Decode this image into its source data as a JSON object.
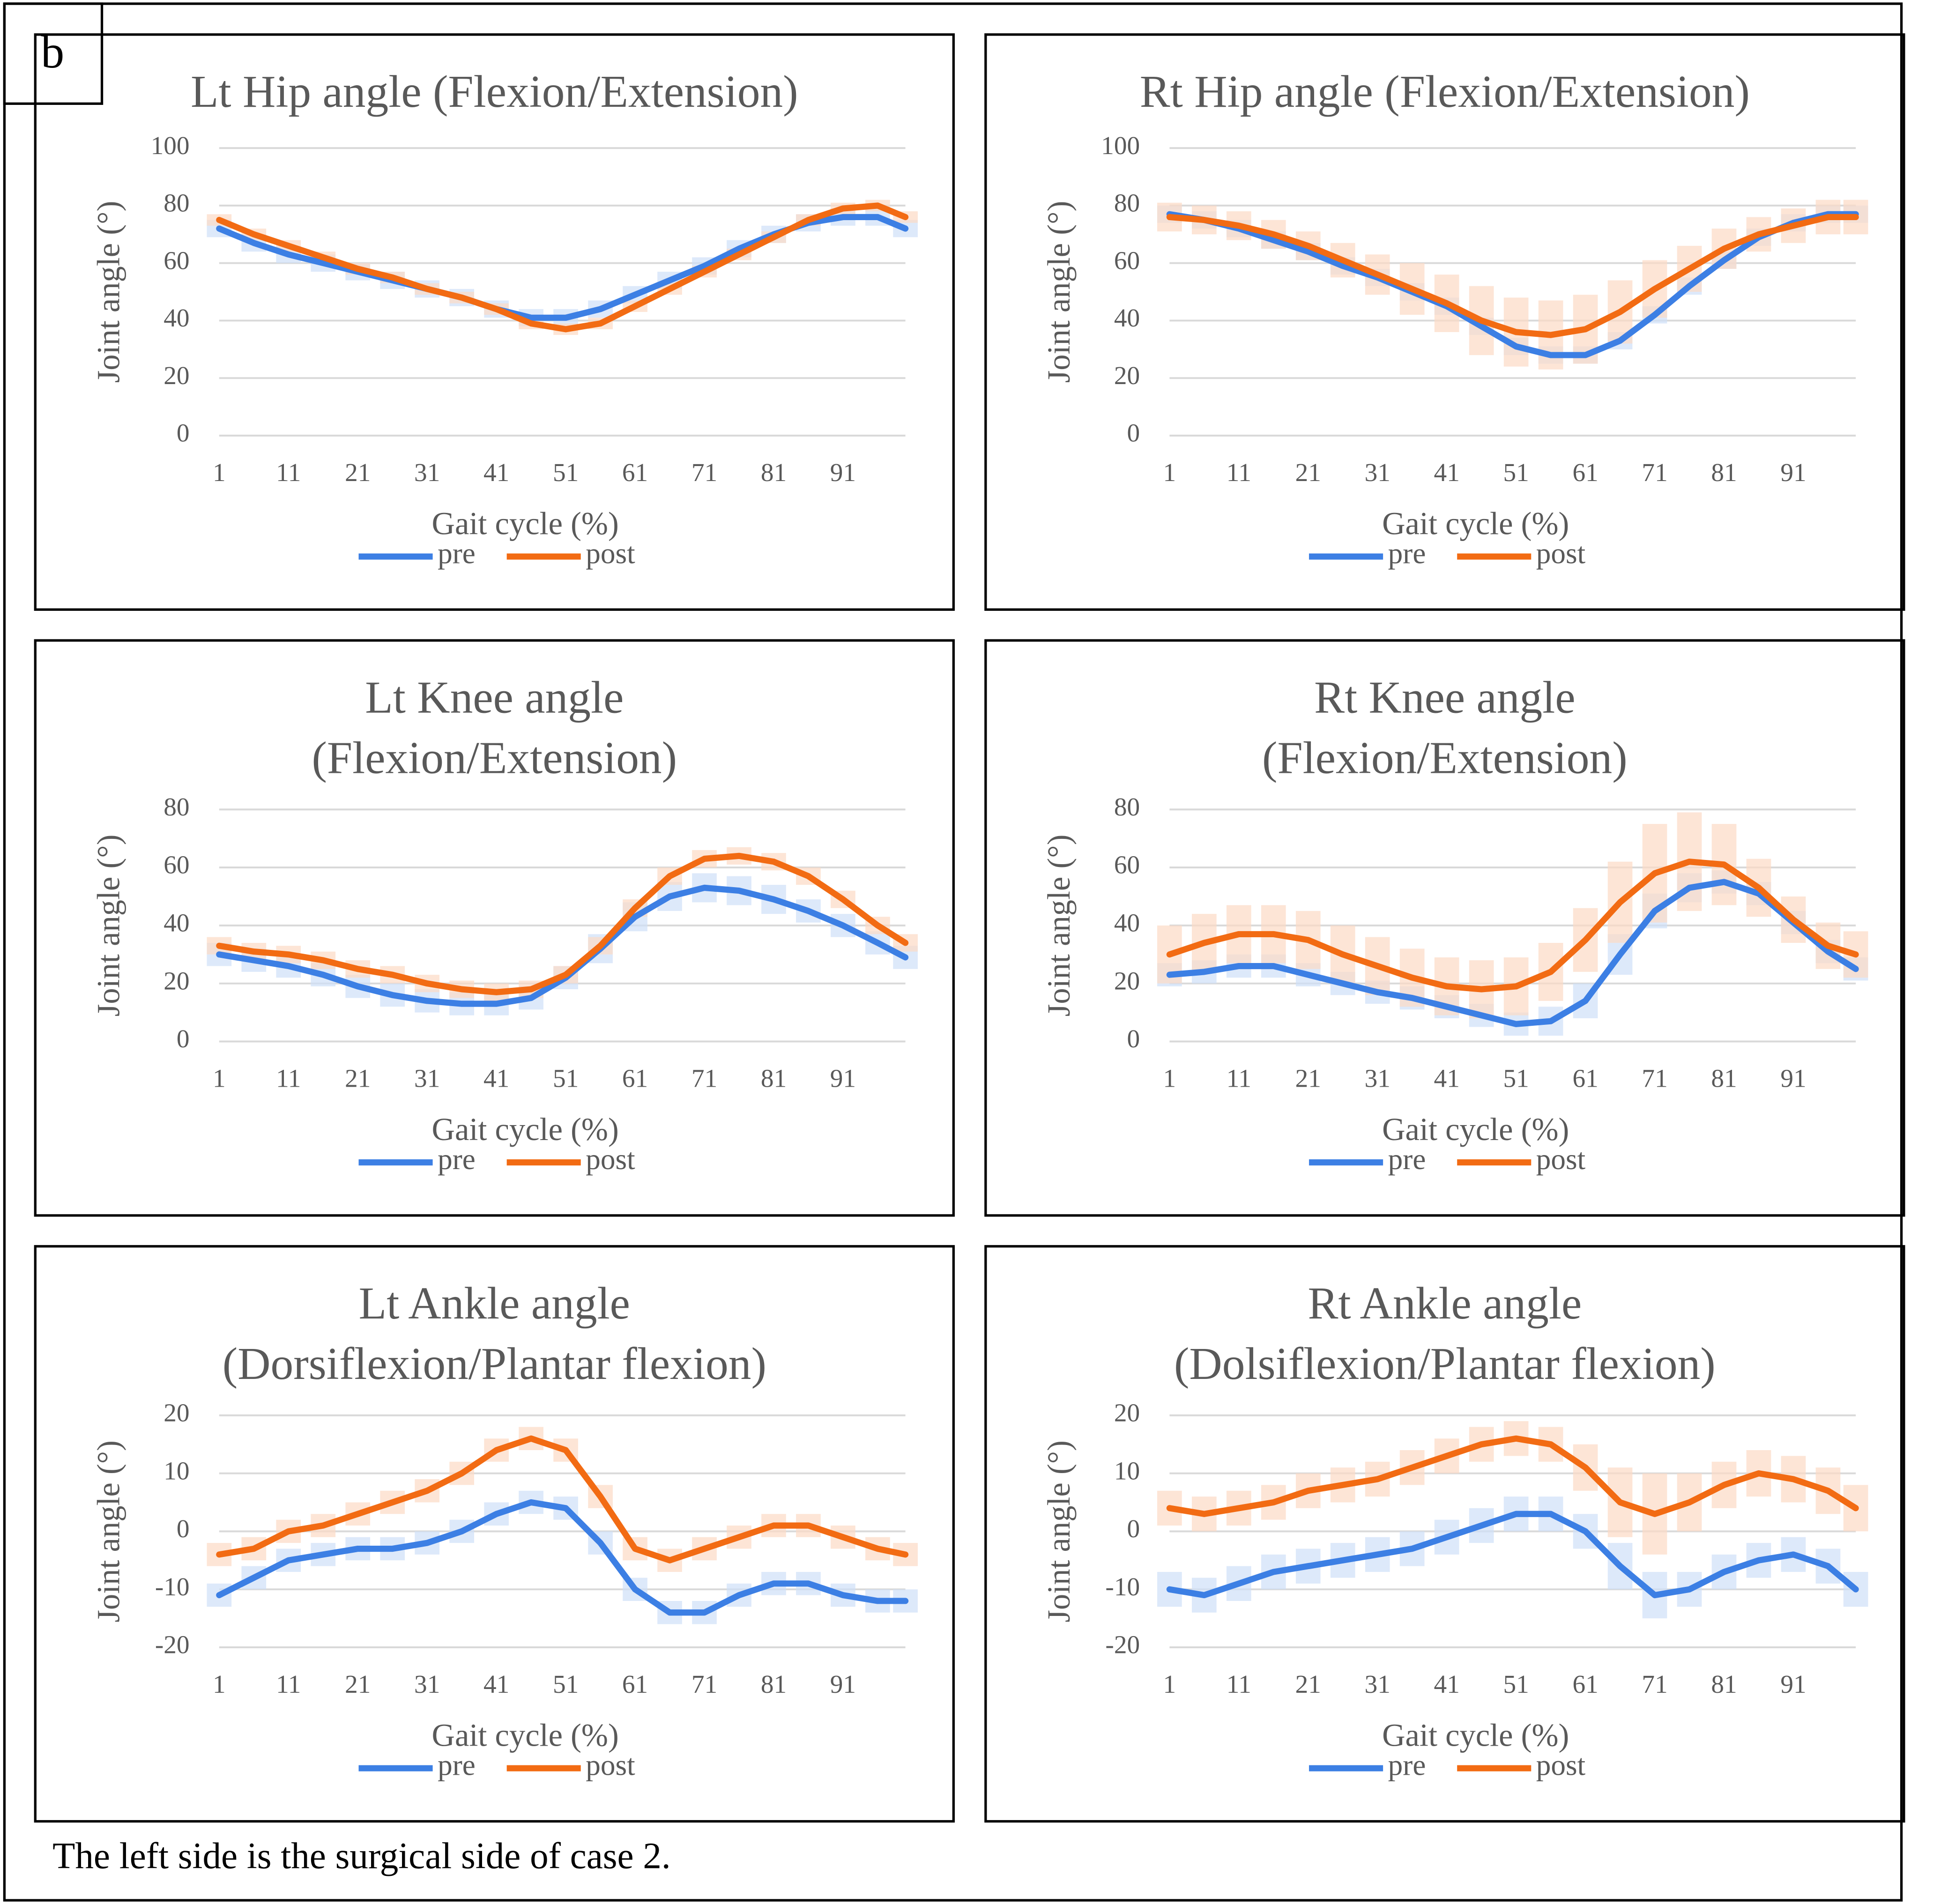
{
  "panel_label": "b",
  "caption": "The left side is the surgical side of case 2.",
  "chart_data": [
    {
      "type": "line",
      "title": [
        "Lt Hip angle (Flexion/Extension)"
      ],
      "x_label": "Gait cycle (%)",
      "y_label": "Joint angle (°)",
      "x": [
        1,
        6,
        11,
        16,
        21,
        26,
        31,
        36,
        41,
        46,
        51,
        56,
        61,
        66,
        71,
        76,
        81,
        86,
        91,
        96,
        100
      ],
      "xlim": [
        1,
        100
      ],
      "xticks": [
        1,
        11,
        21,
        31,
        41,
        51,
        61,
        71,
        81,
        91
      ],
      "ylim": [
        0,
        100
      ],
      "yticks": [
        0,
        20,
        40,
        60,
        80,
        100
      ],
      "grid": true,
      "series": [
        {
          "name": "pre",
          "color": "#3c7fe4",
          "values": [
            72,
            67,
            63,
            60,
            57,
            54,
            51,
            48,
            44,
            41,
            41,
            44,
            49,
            54,
            59,
            65,
            70,
            74,
            76,
            76,
            72
          ],
          "errors": [
            3,
            3,
            3,
            3,
            3,
            3,
            3,
            3,
            3,
            3,
            3,
            3,
            3,
            3,
            3,
            3,
            3,
            3,
            3,
            3,
            3
          ]
        },
        {
          "name": "post",
          "color": "#f26b13",
          "values": [
            75,
            70,
            66,
            62,
            58,
            55,
            51,
            48,
            44,
            39,
            37,
            39,
            45,
            51,
            57,
            63,
            69,
            75,
            79,
            80,
            76
          ],
          "errors": [
            2,
            2,
            2,
            2,
            2,
            2,
            2,
            2,
            2,
            2,
            2,
            2,
            2,
            2,
            2,
            2,
            2,
            2,
            2,
            2,
            2
          ]
        }
      ]
    },
    {
      "type": "line",
      "title": [
        "Rt Hip angle (Flexion/Extension)"
      ],
      "x_label": "Gait cycle (%)",
      "y_label": "Joint angle (°)",
      "x": [
        1,
        6,
        11,
        16,
        21,
        26,
        31,
        36,
        41,
        46,
        51,
        56,
        61,
        66,
        71,
        76,
        81,
        86,
        91,
        96,
        100
      ],
      "xlim": [
        1,
        100
      ],
      "xticks": [
        1,
        11,
        21,
        31,
        41,
        51,
        61,
        71,
        81,
        91
      ],
      "ylim": [
        0,
        100
      ],
      "yticks": [
        0,
        20,
        40,
        60,
        80,
        100
      ],
      "grid": true,
      "series": [
        {
          "name": "pre",
          "color": "#3c7fe4",
          "values": [
            77,
            75,
            72,
            68,
            64,
            59,
            55,
            50,
            45,
            38,
            31,
            28,
            28,
            33,
            42,
            52,
            61,
            69,
            74,
            77,
            77
          ],
          "errors": [
            3,
            3,
            3,
            3,
            3,
            3,
            3,
            3,
            3,
            3,
            3,
            3,
            3,
            3,
            3,
            3,
            3,
            3,
            3,
            3,
            3
          ]
        },
        {
          "name": "post",
          "color": "#f26b13",
          "values": [
            76,
            75,
            73,
            70,
            66,
            61,
            56,
            51,
            46,
            40,
            36,
            35,
            37,
            43,
            51,
            58,
            65,
            70,
            73,
            76,
            76
          ],
          "errors": [
            5,
            5,
            5,
            5,
            5,
            6,
            7,
            9,
            10,
            12,
            12,
            12,
            12,
            11,
            10,
            8,
            7,
            6,
            6,
            6,
            6
          ]
        }
      ]
    },
    {
      "type": "line",
      "title": [
        "Lt Knee angle",
        "(Flexion/Extension)"
      ],
      "x_label": "Gait cycle (%)",
      "y_label": "Joint angle (°)",
      "x": [
        1,
        6,
        11,
        16,
        21,
        26,
        31,
        36,
        41,
        46,
        51,
        56,
        61,
        66,
        71,
        76,
        81,
        86,
        91,
        96,
        100
      ],
      "xlim": [
        1,
        100
      ],
      "xticks": [
        1,
        11,
        21,
        31,
        41,
        51,
        61,
        71,
        81,
        91
      ],
      "ylim": [
        0,
        80
      ],
      "yticks": [
        0,
        20,
        40,
        60,
        80
      ],
      "grid": true,
      "series": [
        {
          "name": "pre",
          "color": "#3c7fe4",
          "values": [
            30,
            28,
            26,
            23,
            19,
            16,
            14,
            13,
            13,
            15,
            22,
            32,
            43,
            50,
            53,
            52,
            49,
            45,
            40,
            34,
            29
          ],
          "errors": [
            4,
            4,
            4,
            4,
            4,
            4,
            4,
            4,
            4,
            4,
            4,
            5,
            5,
            5,
            5,
            5,
            5,
            4,
            4,
            4,
            4
          ]
        },
        {
          "name": "post",
          "color": "#f26b13",
          "values": [
            33,
            31,
            30,
            28,
            25,
            23,
            20,
            18,
            17,
            18,
            23,
            33,
            46,
            57,
            63,
            64,
            62,
            57,
            49,
            40,
            34
          ],
          "errors": [
            3,
            3,
            3,
            3,
            3,
            3,
            3,
            3,
            3,
            3,
            3,
            3,
            3,
            3,
            3,
            3,
            3,
            3,
            3,
            3,
            3
          ]
        }
      ]
    },
    {
      "type": "line",
      "title": [
        "Rt Knee angle",
        "(Flexion/Extension)"
      ],
      "x_label": "Gait cycle (%)",
      "y_label": "Joint angle (°)",
      "x": [
        1,
        6,
        11,
        16,
        21,
        26,
        31,
        36,
        41,
        46,
        51,
        56,
        61,
        66,
        71,
        76,
        81,
        86,
        91,
        96,
        100
      ],
      "xlim": [
        1,
        100
      ],
      "xticks": [
        1,
        11,
        21,
        31,
        41,
        51,
        61,
        71,
        81,
        91
      ],
      "ylim": [
        0,
        80
      ],
      "yticks": [
        0,
        20,
        40,
        60,
        80
      ],
      "grid": true,
      "series": [
        {
          "name": "pre",
          "color": "#3c7fe4",
          "values": [
            23,
            24,
            26,
            26,
            23,
            20,
            17,
            15,
            12,
            9,
            6,
            7,
            14,
            30,
            45,
            53,
            55,
            51,
            41,
            31,
            25
          ],
          "errors": [
            4,
            4,
            4,
            4,
            4,
            4,
            4,
            4,
            4,
            4,
            4,
            5,
            6,
            7,
            6,
            5,
            4,
            4,
            4,
            4,
            4
          ]
        },
        {
          "name": "post",
          "color": "#f26b13",
          "values": [
            30,
            34,
            37,
            37,
            35,
            30,
            26,
            22,
            19,
            18,
            19,
            24,
            35,
            48,
            58,
            62,
            61,
            53,
            42,
            33,
            30
          ],
          "errors": [
            10,
            10,
            10,
            10,
            10,
            10,
            10,
            10,
            10,
            10,
            10,
            10,
            11,
            14,
            17,
            17,
            14,
            10,
            8,
            8,
            8
          ]
        }
      ]
    },
    {
      "type": "line",
      "title": [
        "Lt Ankle angle",
        "(Dorsiflexion/Plantar  flexion)"
      ],
      "x_label": "Gait cycle (%)",
      "y_label": "Joint angle (°)",
      "x": [
        1,
        6,
        11,
        16,
        21,
        26,
        31,
        36,
        41,
        46,
        51,
        56,
        61,
        66,
        71,
        76,
        81,
        86,
        91,
        96,
        100
      ],
      "xlim": [
        1,
        100
      ],
      "xticks": [
        1,
        11,
        21,
        31,
        41,
        51,
        61,
        71,
        81,
        91
      ],
      "ylim": [
        -20,
        20
      ],
      "yticks": [
        -20,
        -10,
        0,
        10,
        20
      ],
      "grid": true,
      "series": [
        {
          "name": "pre",
          "color": "#3c7fe4",
          "values": [
            -11,
            -8,
            -5,
            -4,
            -3,
            -3,
            -2,
            0,
            3,
            5,
            4,
            -2,
            -10,
            -14,
            -14,
            -11,
            -9,
            -9,
            -11,
            -12,
            -12
          ],
          "errors": [
            2,
            2,
            2,
            2,
            2,
            2,
            2,
            2,
            2,
            2,
            2,
            2,
            2,
            2,
            2,
            2,
            2,
            2,
            2,
            2,
            2
          ]
        },
        {
          "name": "post",
          "color": "#f26b13",
          "values": [
            -4,
            -3,
            0,
            1,
            3,
            5,
            7,
            10,
            14,
            16,
            14,
            6,
            -3,
            -5,
            -3,
            -1,
            1,
            1,
            -1,
            -3,
            -4
          ],
          "errors": [
            2,
            2,
            2,
            2,
            2,
            2,
            2,
            2,
            2,
            2,
            2,
            2,
            2,
            2,
            2,
            2,
            2,
            2,
            2,
            2,
            2
          ]
        }
      ]
    },
    {
      "type": "line",
      "title": [
        "Rt Ankle angle",
        "(Dolsiflexion/Plantar  flexion)"
      ],
      "x_label": "Gait cycle (%)",
      "y_label": "Joint angle (°)",
      "x": [
        1,
        6,
        11,
        16,
        21,
        26,
        31,
        36,
        41,
        46,
        51,
        56,
        61,
        66,
        71,
        76,
        81,
        86,
        91,
        96,
        100
      ],
      "xlim": [
        1,
        100
      ],
      "xticks": [
        1,
        11,
        21,
        31,
        41,
        51,
        61,
        71,
        81,
        91
      ],
      "ylim": [
        -20,
        20
      ],
      "yticks": [
        -20,
        -10,
        0,
        10,
        20
      ],
      "grid": true,
      "series": [
        {
          "name": "pre",
          "color": "#3c7fe4",
          "values": [
            -10,
            -11,
            -9,
            -7,
            -6,
            -5,
            -4,
            -3,
            -1,
            1,
            3,
            3,
            0,
            -6,
            -11,
            -10,
            -7,
            -5,
            -4,
            -6,
            -10
          ],
          "errors": [
            3,
            3,
            3,
            3,
            3,
            3,
            3,
            3,
            3,
            3,
            3,
            3,
            3,
            4,
            4,
            3,
            3,
            3,
            3,
            3,
            3
          ]
        },
        {
          "name": "post",
          "color": "#f26b13",
          "values": [
            4,
            3,
            4,
            5,
            7,
            8,
            9,
            11,
            13,
            15,
            16,
            15,
            11,
            5,
            3,
            5,
            8,
            10,
            9,
            7,
            4
          ],
          "errors": [
            3,
            3,
            3,
            3,
            3,
            3,
            3,
            3,
            3,
            3,
            3,
            3,
            4,
            6,
            7,
            5,
            4,
            4,
            4,
            4,
            4
          ]
        }
      ]
    }
  ]
}
